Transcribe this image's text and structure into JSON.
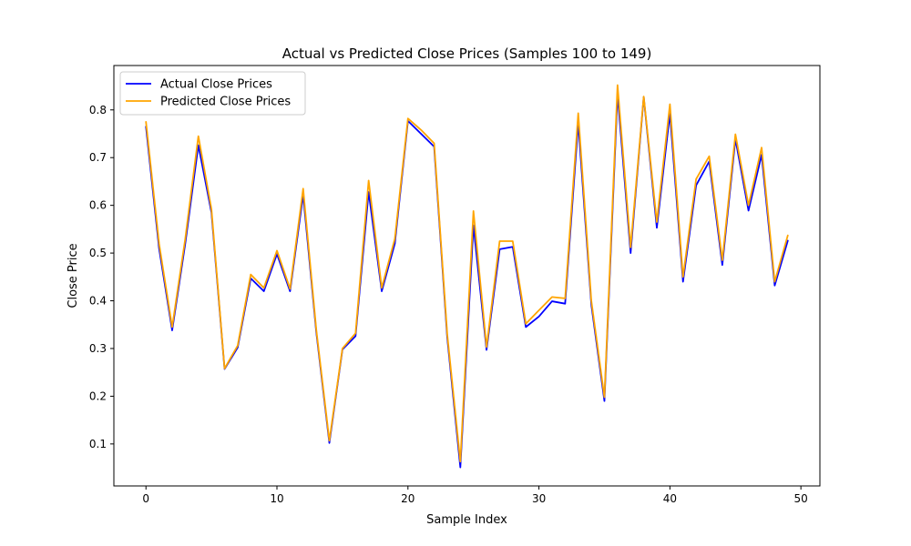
{
  "chart_data": {
    "type": "line",
    "title": "Actual vs Predicted Close Prices (Samples 100 to 149)",
    "xlabel": "Sample Index",
    "ylabel": "Close Price",
    "xlim": [
      -2.45,
      51.45
    ],
    "ylim": [
      0.012,
      0.893
    ],
    "xticks": [
      0,
      10,
      20,
      30,
      40,
      50
    ],
    "yticks": [
      0.1,
      0.2,
      0.3,
      0.4,
      0.5,
      0.6,
      0.7,
      0.8
    ],
    "ytick_labels": [
      "0.1",
      "0.2",
      "0.3",
      "0.4",
      "0.5",
      "0.6",
      "0.7",
      "0.8"
    ],
    "grid": false,
    "legend_position": "top-left",
    "x": [
      0,
      1,
      2,
      3,
      4,
      5,
      6,
      7,
      8,
      9,
      10,
      11,
      12,
      13,
      14,
      15,
      16,
      17,
      18,
      19,
      20,
      21,
      22,
      23,
      24,
      25,
      26,
      27,
      28,
      29,
      30,
      31,
      32,
      33,
      34,
      35,
      36,
      37,
      38,
      39,
      40,
      41,
      42,
      43,
      44,
      45,
      46,
      47,
      48,
      49
    ],
    "series": [
      {
        "name": "Actual Close Prices",
        "color": "#0000ff",
        "values": [
          0.765,
          0.51,
          0.338,
          0.52,
          0.726,
          0.585,
          0.257,
          0.302,
          0.447,
          0.42,
          0.498,
          0.42,
          0.622,
          0.335,
          0.102,
          0.298,
          0.326,
          0.628,
          0.42,
          0.52,
          0.777,
          0.75,
          0.723,
          0.323,
          0.051,
          0.558,
          0.297,
          0.508,
          0.513,
          0.345,
          0.367,
          0.399,
          0.394,
          0.773,
          0.392,
          0.19,
          0.834,
          0.5,
          0.827,
          0.553,
          0.793,
          0.44,
          0.642,
          0.692,
          0.475,
          0.739,
          0.589,
          0.706,
          0.432,
          0.526
        ]
      },
      {
        "name": "Predicted Close Prices",
        "color": "#ffa500",
        "values": [
          0.775,
          0.52,
          0.345,
          0.53,
          0.745,
          0.592,
          0.258,
          0.306,
          0.455,
          0.427,
          0.505,
          0.425,
          0.635,
          0.34,
          0.107,
          0.3,
          0.332,
          0.652,
          0.427,
          0.53,
          0.782,
          0.758,
          0.73,
          0.33,
          0.063,
          0.588,
          0.303,
          0.525,
          0.525,
          0.352,
          0.38,
          0.408,
          0.405,
          0.793,
          0.4,
          0.198,
          0.852,
          0.512,
          0.828,
          0.565,
          0.812,
          0.45,
          0.655,
          0.703,
          0.485,
          0.749,
          0.6,
          0.721,
          0.44,
          0.537
        ]
      }
    ]
  }
}
